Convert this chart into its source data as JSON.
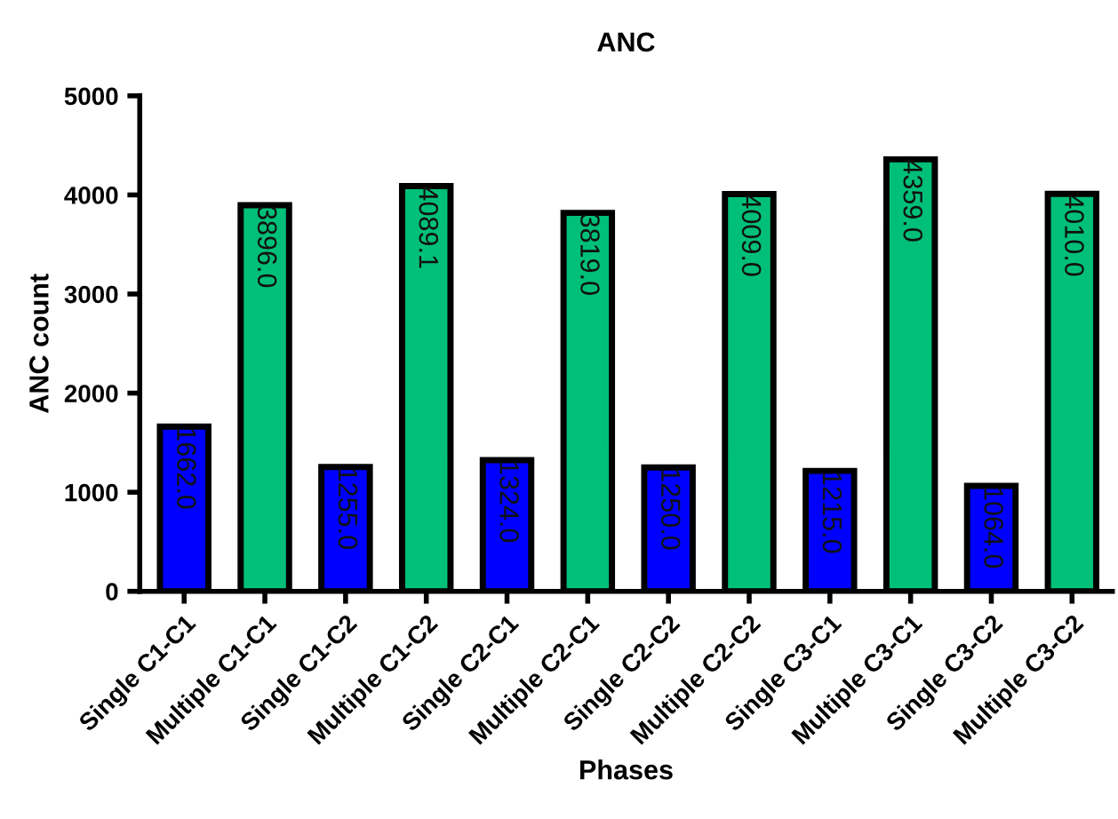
{
  "chart_data": {
    "type": "bar",
    "title": "ANC",
    "xlabel": "Phases",
    "ylabel": "ANC count",
    "categories": [
      "Single C1-C1",
      "Multiple C1-C1",
      "Single C1-C2",
      "Multiple C1-C2",
      "Single C2-C1",
      "Multiple C2-C1",
      "Single C2-C2",
      "Multiple C2-C2",
      "Single C3-C1",
      "Multiple C3-C1",
      "Single C3-C2",
      "Multiple C3-C2"
    ],
    "values": [
      1662,
      3896,
      1255,
      4089.1,
      1324,
      3819,
      1250,
      4009,
      1215,
      4359,
      1064,
      4010
    ],
    "value_labels": [
      "1662.0",
      "3896.0",
      "1255.0",
      "4089.1",
      "1324.0",
      "3819.0",
      "1250.0",
      "4009.0",
      "1215.0",
      "4359.0",
      "1064.0",
      "4010.0"
    ],
    "colors": [
      "#0000ff",
      "#00bf78",
      "#0000ff",
      "#00bf78",
      "#0000ff",
      "#00bf78",
      "#0000ff",
      "#00bf78",
      "#0000ff",
      "#00bf78",
      "#0000ff",
      "#00bf78"
    ],
    "ylim": [
      0,
      5000
    ],
    "yticks": [
      0,
      1000,
      2000,
      3000,
      4000,
      5000
    ],
    "grid": false,
    "legend": false
  }
}
